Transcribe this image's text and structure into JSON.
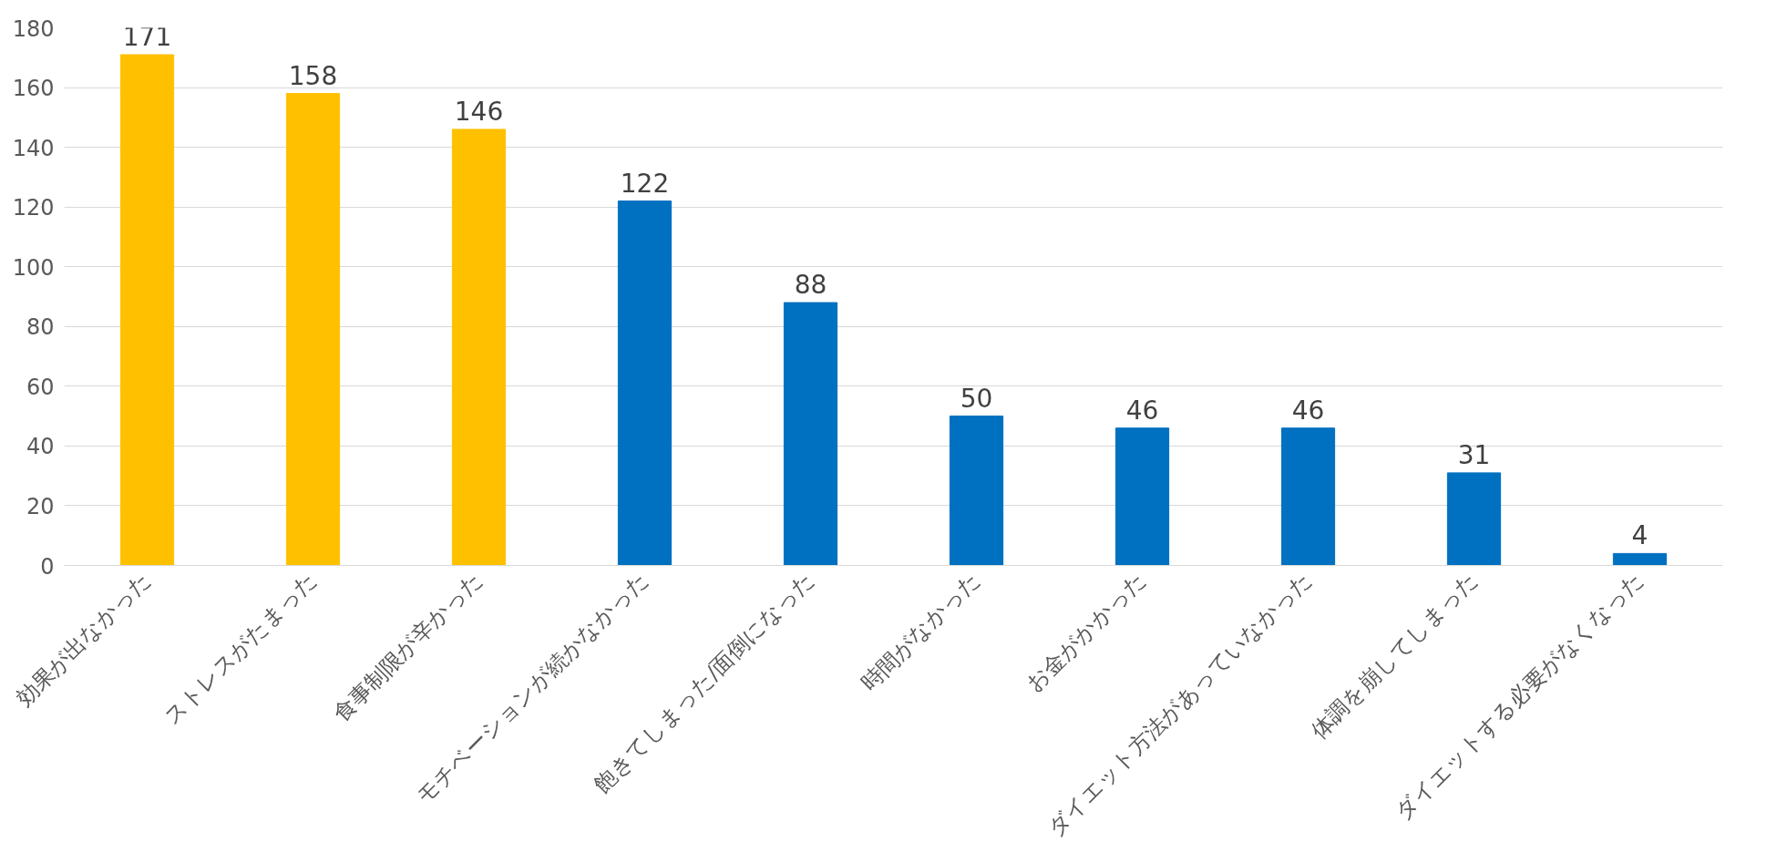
{
  "chart_data": {
    "type": "bar",
    "categories": [
      "効果が出なかった",
      "ストレスがたまった",
      "食事制限が辛かった",
      "モチベーションが続かなかった",
      "飽きてしまった/面倒になった",
      "時間がなかった",
      "お金がかかった",
      "ダイエット方法があっていなかった",
      "体調を崩してしまった",
      "ダイエットする必要がなくなった"
    ],
    "values": [
      171,
      158,
      146,
      122,
      88,
      50,
      46,
      46,
      31,
      4
    ],
    "colors": [
      "#ffc000",
      "#ffc000",
      "#ffc000",
      "#0070c0",
      "#0070c0",
      "#0070c0",
      "#0070c0",
      "#0070c0",
      "#0070c0",
      "#0070c0"
    ],
    "ylim": [
      0,
      180
    ],
    "yticks": [
      0,
      20,
      40,
      60,
      80,
      100,
      120,
      140,
      160,
      180
    ],
    "grid": "y",
    "data_labels": true
  }
}
